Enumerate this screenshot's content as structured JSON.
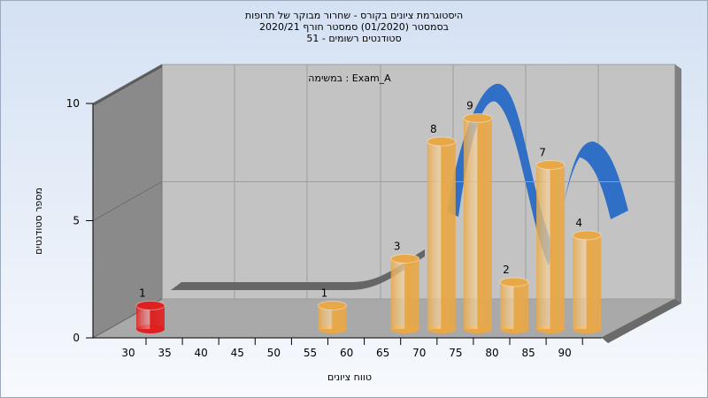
{
  "chart_data": {
    "type": "bar",
    "title": [
      "היסטוגרמת ציונים בקורס - שחרור מבוקר של תרופות",
      "בסמסטר  (01/2020)  סמסטר חורף 2020/21",
      "סטודנטים רשומים - 51"
    ],
    "annotation": "Exam_A : במשימה",
    "x_label": "טווח ציונים",
    "y_label": "מספר סטודנטים",
    "categories": [
      "30",
      "35",
      "40",
      "45",
      "50",
      "55",
      "60",
      "65",
      "70",
      "75",
      "80",
      "85",
      "90"
    ],
    "values": [
      1,
      0,
      0,
      0,
      0,
      1,
      0,
      3,
      8,
      9,
      2,
      7,
      4
    ],
    "colors": [
      "#e02020",
      "#e8a848",
      "#e8a848",
      "#e8a848",
      "#e8a848",
      "#e8a848",
      "#e8a848",
      "#e8a848",
      "#e8a848",
      "#e8a848",
      "#e8a848",
      "#e8a848",
      "#e8a848"
    ],
    "ylim": [
      0,
      10
    ],
    "yticks": [
      0,
      5,
      10
    ],
    "grid": true
  }
}
